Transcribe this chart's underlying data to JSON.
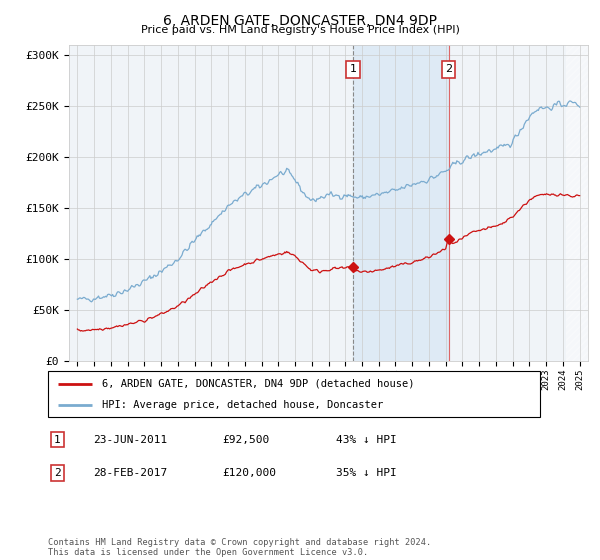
{
  "title": "6, ARDEN GATE, DONCASTER, DN4 9DP",
  "subtitle": "Price paid vs. HM Land Registry's House Price Index (HPI)",
  "ylim": [
    0,
    310000
  ],
  "yticks": [
    0,
    50000,
    100000,
    150000,
    200000,
    250000,
    300000
  ],
  "ytick_labels": [
    "£0",
    "£50K",
    "£100K",
    "£150K",
    "£200K",
    "£250K",
    "£300K"
  ],
  "hpi_color": "#7aabcf",
  "price_color": "#cc1111",
  "shade_color": "#deeaf5",
  "marker1_year": 2011.47,
  "marker1_value": 92500,
  "marker2_year": 2017.17,
  "marker2_value": 120000,
  "marker1_label": "23-JUN-2011",
  "marker1_price": "£92,500",
  "marker1_pct": "43% ↓ HPI",
  "marker2_label": "28-FEB-2017",
  "marker2_price": "£120,000",
  "marker2_pct": "35% ↓ HPI",
  "legend_line1": "6, ARDEN GATE, DONCASTER, DN4 9DP (detached house)",
  "legend_line2": "HPI: Average price, detached house, Doncaster",
  "footnote": "Contains HM Land Registry data © Crown copyright and database right 2024.\nThis data is licensed under the Open Government Licence v3.0.",
  "hpi_points_x": [
    1995,
    1996,
    1997,
    1998,
    1999,
    2000,
    2001,
    2002,
    2003,
    2004,
    2005,
    2006,
    2007,
    2007.5,
    2008,
    2008.5,
    2009,
    2009.5,
    2010,
    2010.5,
    2011,
    2011.5,
    2012,
    2012.5,
    2013,
    2013.5,
    2014,
    2014.5,
    2015,
    2015.5,
    2016,
    2016.5,
    2017,
    2017.5,
    2018,
    2018.5,
    2019,
    2019.5,
    2020,
    2020.5,
    2021,
    2021.5,
    2022,
    2022.5,
    2023,
    2023.5,
    2024,
    2024.5,
    2025
  ],
  "hpi_points_y": [
    60000,
    62000,
    65000,
    70000,
    78000,
    88000,
    100000,
    118000,
    135000,
    152000,
    163000,
    172000,
    183000,
    185000,
    178000,
    165000,
    157000,
    160000,
    163000,
    162000,
    163000,
    161000,
    160000,
    162000,
    163000,
    165000,
    167000,
    170000,
    173000,
    176000,
    178000,
    182000,
    186000,
    192000,
    197000,
    200000,
    203000,
    206000,
    207000,
    210000,
    215000,
    228000,
    240000,
    248000,
    248000,
    250000,
    252000,
    253000,
    252000
  ],
  "price_points_x": [
    1995,
    1996,
    1997,
    1998,
    1999,
    2000,
    2001,
    2002,
    2003,
    2004,
    2005,
    2006,
    2007,
    2007.5,
    2008,
    2008.5,
    2009,
    2009.5,
    2010,
    2010.5,
    2011,
    2011.47,
    2011.5,
    2012,
    2012.5,
    2013,
    2013.5,
    2014,
    2014.5,
    2015,
    2015.5,
    2016,
    2016.5,
    2017,
    2017.17,
    2017.5,
    2018,
    2018.5,
    2019,
    2019.5,
    2020,
    2020.5,
    2021,
    2021.5,
    2022,
    2022.5,
    2023,
    2023.5,
    2024,
    2024.5,
    2025
  ],
  "price_points_y": [
    30000,
    31000,
    33000,
    36000,
    40000,
    46000,
    54000,
    65000,
    78000,
    88000,
    95000,
    100000,
    105000,
    107000,
    103000,
    96000,
    89000,
    88000,
    90000,
    91000,
    91000,
    92500,
    90000,
    87000,
    88000,
    89000,
    91000,
    93000,
    95000,
    97000,
    99000,
    102000,
    106000,
    110000,
    120000,
    115000,
    120000,
    125000,
    128000,
    130000,
    132000,
    136000,
    142000,
    150000,
    158000,
    162000,
    163000,
    164000,
    163000,
    162000,
    162000
  ]
}
